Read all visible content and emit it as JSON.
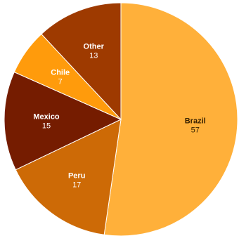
{
  "chart_data": {
    "type": "pie",
    "title": "",
    "legend": "none",
    "start_angle_deg": 0,
    "direction": "clockwise",
    "slices": [
      {
        "label": "Brazil",
        "value": 57,
        "color": "#ffb03a",
        "label_color": "#3a2200"
      },
      {
        "label": "Peru",
        "value": 17,
        "color": "#cd6a06",
        "label_color": "#ffffff"
      },
      {
        "label": "Mexico",
        "value": 15,
        "color": "#751c00",
        "label_color": "#ffffff"
      },
      {
        "label": "Chile",
        "value": 7,
        "color": "#ff9b0c",
        "label_color": "#ffffff"
      },
      {
        "label": "Other",
        "value": 13,
        "color": "#9e3a00",
        "label_color": "#ffffff"
      }
    ]
  }
}
